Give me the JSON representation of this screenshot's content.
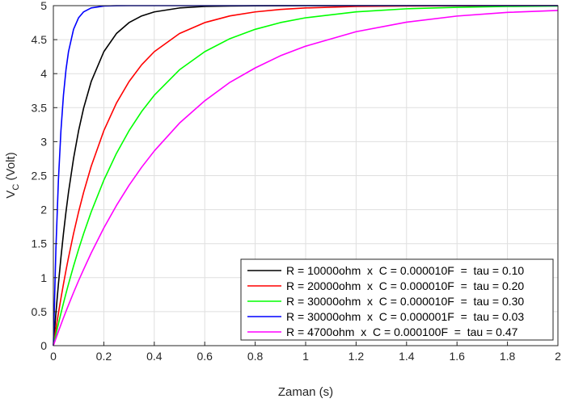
{
  "chart_data": {
    "type": "line",
    "title": "",
    "xlabel": "Zaman (s)",
    "ylabel_main": "V",
    "ylabel_sub": "C",
    "ylabel_suffix": " (Volt)",
    "xlim": [
      0,
      2
    ],
    "ylim": [
      0,
      5
    ],
    "grid": true,
    "legend_position": "bottom-right",
    "x_ticks": [
      "0",
      "0.2",
      "0.4",
      "0.6",
      "0.8",
      "1",
      "1.2",
      "1.4",
      "1.6",
      "1.8",
      "2"
    ],
    "y_ticks": [
      "0",
      "0.5",
      "1",
      "1.5",
      "2",
      "2.5",
      "3",
      "3.5",
      "4",
      "4.5",
      "5"
    ],
    "x_tick_values": [
      0,
      0.2,
      0.4,
      0.6,
      0.8,
      1,
      1.2,
      1.4,
      1.6,
      1.8,
      2
    ],
    "y_tick_values": [
      0,
      0.5,
      1,
      1.5,
      2,
      2.5,
      3,
      3.5,
      4,
      4.5,
      5
    ],
    "x": [
      0,
      0.01,
      0.02,
      0.03,
      0.04,
      0.05,
      0.06,
      0.08,
      0.1,
      0.12,
      0.15,
      0.2,
      0.25,
      0.3,
      0.35,
      0.4,
      0.5,
      0.6,
      0.7,
      0.8,
      0.9,
      1,
      1.2,
      1.4,
      1.6,
      1.8,
      2
    ],
    "series": [
      {
        "name": "R = 10000ohm  x  C = 0.000010F  =  tau = 0.10",
        "color": "#000000",
        "values": [
          0,
          0.476,
          0.906,
          1.296,
          1.648,
          1.967,
          2.256,
          2.753,
          3.161,
          3.494,
          3.884,
          4.323,
          4.59,
          4.751,
          4.849,
          4.908,
          4.966,
          4.988,
          4.995,
          4.998,
          4.999,
          5.0,
          5.0,
          5.0,
          5.0,
          5.0,
          5.0
        ]
      },
      {
        "name": "R = 20000ohm  x  C = 0.000010F  =  tau = 0.20",
        "color": "#ff0000",
        "values": [
          0,
          0.244,
          0.476,
          0.696,
          0.906,
          1.106,
          1.296,
          1.648,
          1.967,
          2.256,
          2.638,
          3.161,
          3.567,
          3.884,
          4.131,
          4.323,
          4.59,
          4.751,
          4.849,
          4.908,
          4.944,
          4.966,
          4.988,
          4.995,
          4.998,
          4.999,
          5.0
        ]
      },
      {
        "name": "R = 30000ohm  x  C = 0.000010F  =  tau = 0.30",
        "color": "#00ff00",
        "values": [
          0,
          0.164,
          0.322,
          0.476,
          0.624,
          0.768,
          0.906,
          1.17,
          1.417,
          1.648,
          1.967,
          2.433,
          2.827,
          3.161,
          3.444,
          3.682,
          4.057,
          4.323,
          4.515,
          4.652,
          4.751,
          4.822,
          4.909,
          4.954,
          4.976,
          4.988,
          4.994
        ]
      },
      {
        "name": "R = 30000ohm  x  C = 0.000001F  =  tau = 0.03",
        "color": "#0000ff",
        "values": [
          0,
          1.417,
          2.433,
          3.161,
          3.682,
          4.057,
          4.323,
          4.652,
          4.822,
          4.909,
          4.967,
          4.994,
          4.999,
          5.0,
          5.0,
          5.0,
          5.0,
          5.0,
          5.0,
          5.0,
          5.0,
          5.0,
          5.0,
          5.0,
          5.0,
          5.0,
          5.0
        ]
      },
      {
        "name": "R = 4700ohm  x  C = 0.000100F  =  tau = 0.47",
        "color": "#ff00ff",
        "values": [
          0,
          0.105,
          0.21,
          0.309,
          0.408,
          0.504,
          0.598,
          0.781,
          0.956,
          1.122,
          1.363,
          1.731,
          2.061,
          2.358,
          2.624,
          2.863,
          3.273,
          3.601,
          3.873,
          4.084,
          4.263,
          4.404,
          4.617,
          4.757,
          4.847,
          4.901,
          4.929
        ]
      }
    ]
  }
}
